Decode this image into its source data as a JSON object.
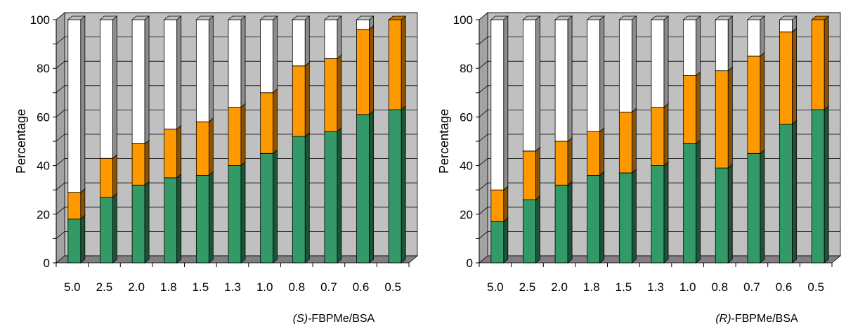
{
  "colors": {
    "green": "#339966",
    "orange": "#ff9900",
    "white": "#ffffff",
    "wall": "#c0c0c0",
    "floor": "#808080",
    "grid": "#000000"
  },
  "chart_data": [
    {
      "type": "bar",
      "stacked": true,
      "three_d": true,
      "title": "",
      "xlabel_prefix": "(S)",
      "xlabel_suffix": "-FBPMe/BSA",
      "ylabel": "Percentage",
      "ylim": [
        0,
        100
      ],
      "yticks": [
        "0",
        "20",
        "40",
        "60",
        "80",
        "100"
      ],
      "grid": true,
      "categories": [
        "5.0",
        "2.5",
        "2.0",
        "1.8",
        "1.5",
        "1.3",
        "1.0",
        "0.8",
        "0.7",
        "0.6",
        "0.5"
      ],
      "series": [
        {
          "color": "green",
          "values": [
            18,
            27,
            32,
            35,
            36,
            40,
            45,
            52,
            54,
            61,
            63
          ]
        },
        {
          "color": "orange",
          "values": [
            11,
            16,
            17,
            20,
            22,
            24,
            25,
            29,
            30,
            35,
            37
          ]
        },
        {
          "color": "white",
          "values": [
            71,
            57,
            51,
            45,
            42,
            36,
            30,
            19,
            16,
            4,
            0
          ]
        }
      ]
    },
    {
      "type": "bar",
      "stacked": true,
      "three_d": true,
      "title": "",
      "xlabel_prefix": "(R)",
      "xlabel_suffix": "-FBPMe/BSA",
      "ylabel": "Percentage",
      "ylim": [
        0,
        100
      ],
      "yticks": [
        "0",
        "20",
        "40",
        "60",
        "80",
        "100"
      ],
      "grid": true,
      "categories": [
        "5.0",
        "2.5",
        "2.0",
        "1.8",
        "1.5",
        "1.3",
        "1.0",
        "0.8",
        "0.7",
        "0.6",
        "0.5"
      ],
      "series": [
        {
          "color": "green",
          "values": [
            17,
            26,
            32,
            36,
            37,
            40,
            49,
            39,
            45,
            57,
            63
          ]
        },
        {
          "color": "orange",
          "values": [
            13,
            20,
            18,
            18,
            25,
            24,
            28,
            40,
            40,
            38,
            37
          ]
        },
        {
          "color": "white",
          "values": [
            70,
            54,
            50,
            46,
            38,
            36,
            23,
            21,
            15,
            5,
            0
          ]
        }
      ]
    }
  ]
}
